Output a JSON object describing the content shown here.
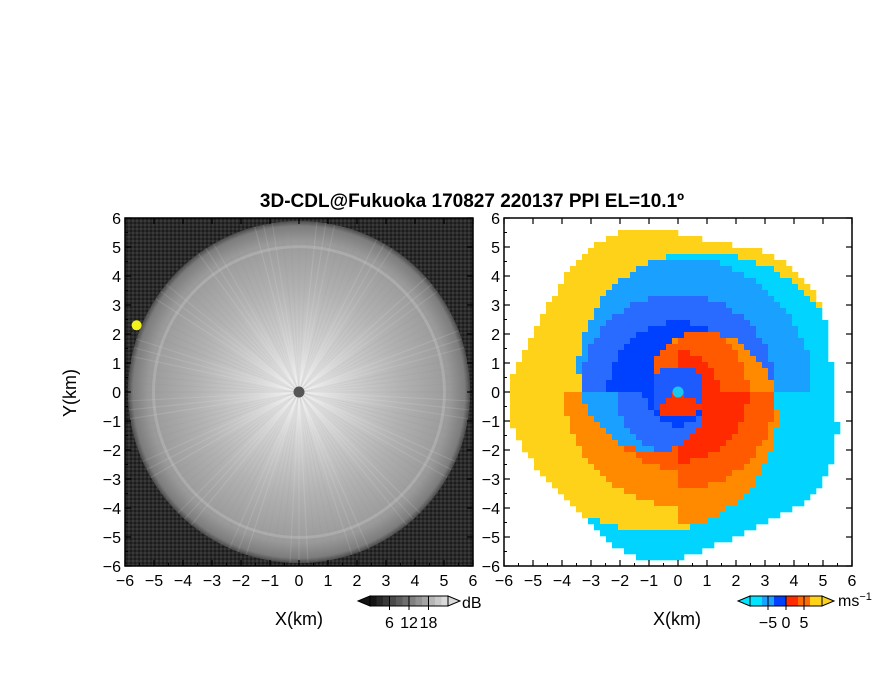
{
  "title": "3D-CDL@Fukuoka 170827 220137 PPI EL=10.1º",
  "panels": [
    {
      "id": "left",
      "quantity": "reflectivity",
      "colormap": "grayscale"
    },
    {
      "id": "right",
      "quantity": "doppler-velocity",
      "colormap": "blue-red-yellow"
    }
  ],
  "axes": {
    "xlabel": "X(km)",
    "ylabel": "Y(km)",
    "xlim": [
      -6,
      6
    ],
    "ylim": [
      -6,
      6
    ],
    "ticks": [
      -6,
      -5,
      -4,
      -3,
      -2,
      -1,
      0,
      1,
      2,
      3,
      4,
      5,
      6
    ],
    "tick_labels": [
      "−6",
      "−5",
      "−4",
      "−3",
      "−2",
      "−1",
      "0",
      "1",
      "2",
      "3",
      "4",
      "5",
      "6"
    ]
  },
  "colorbars": {
    "reflectivity": {
      "unit": "dB",
      "tick_labels": [
        "6",
        "12",
        "18"
      ],
      "ticks": [
        6,
        12,
        18
      ],
      "range": [
        0,
        24
      ]
    },
    "velocity": {
      "unit": "ms",
      "unit_exp": "−1",
      "tick_labels": [
        "−5",
        "0",
        "5"
      ],
      "ticks": [
        -5,
        0,
        5
      ],
      "range": [
        -10,
        10
      ]
    }
  },
  "chart_data": [
    {
      "type": "heatmap",
      "panel": "left",
      "description_source": "PPI scan of backscatter intensity; bright near origin, fading with range to about 5.8 km",
      "radar_position": [
        0,
        0
      ],
      "max_range_km": 5.9,
      "marker_colors": {
        "radar": "#555555",
        "hotspot": "#f2f21a"
      },
      "hotspot_position": [
        -5.6,
        2.3
      ],
      "xlim": [
        -6,
        6
      ],
      "ylim": [
        -6,
        6
      ]
    },
    {
      "type": "heatmap",
      "panel": "right",
      "radar_position": [
        0,
        0
      ],
      "max_range_km": 5.8,
      "marker_colors": {
        "radar": "#19c8f0"
      },
      "palette": [
        "#00e5ff",
        "#1a8cff",
        "#0040ff",
        "#ff2a00",
        "#ff6a00",
        "#ffd21a"
      ],
      "xlim": [
        -6,
        6
      ],
      "ylim": [
        -6,
        6
      ]
    }
  ]
}
